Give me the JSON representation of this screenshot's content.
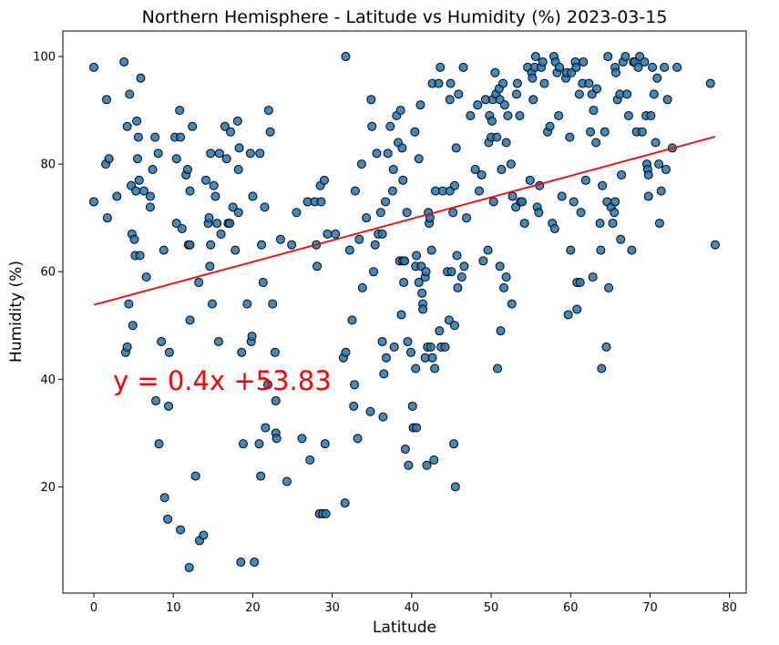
{
  "chart_data": {
    "type": "scatter",
    "title": "Northern Hemisphere - Latitude vs Humidity (%) 2023-03-15",
    "xlabel": "Latitude",
    "ylabel": "Humidity (%)",
    "xlim": [
      -3.9,
      82.1
    ],
    "ylim": [
      0.25,
      104.75
    ],
    "xticks": [
      0,
      10,
      20,
      30,
      40,
      50,
      60,
      70,
      80
    ],
    "yticks": [
      20,
      40,
      60,
      80,
      100
    ],
    "grid": false,
    "point_color": "#1f77b4",
    "point_edge_color": "#000000",
    "regression": {
      "slope": 0.4,
      "intercept": 53.83,
      "x_range": [
        0,
        78.2
      ],
      "color": "#ff0000",
      "equation_text": "y = 0.4x +53.83",
      "equation_anchor": [
        2.4,
        38
      ]
    },
    "points": [
      [
        0,
        98
      ],
      [
        0,
        73
      ],
      [
        1.5,
        80
      ],
      [
        1.6,
        92
      ],
      [
        1.7,
        70
      ],
      [
        1.9,
        81
      ],
      [
        2.9,
        74
      ],
      [
        3.8,
        99
      ],
      [
        4,
        45
      ],
      [
        4.2,
        87
      ],
      [
        4.2,
        46
      ],
      [
        4.4,
        54
      ],
      [
        4.5,
        93
      ],
      [
        4.7,
        76
      ],
      [
        4.8,
        67
      ],
      [
        4.9,
        50
      ],
      [
        5.1,
        66
      ],
      [
        5.2,
        63
      ],
      [
        5.3,
        75
      ],
      [
        5.4,
        88
      ],
      [
        5.5,
        81
      ],
      [
        5.6,
        85
      ],
      [
        5.7,
        77
      ],
      [
        5.8,
        63
      ],
      [
        5.9,
        96
      ],
      [
        6.3,
        75
      ],
      [
        6.6,
        59
      ],
      [
        7.1,
        74
      ],
      [
        7.1,
        72
      ],
      [
        7.4,
        79
      ],
      [
        7.7,
        85
      ],
      [
        7.8,
        36
      ],
      [
        8.1,
        82
      ],
      [
        8.2,
        28
      ],
      [
        8.5,
        47
      ],
      [
        8.8,
        64
      ],
      [
        8.9,
        18
      ],
      [
        9.3,
        14
      ],
      [
        9.4,
        35
      ],
      [
        9.5,
        45
      ],
      [
        10.2,
        85
      ],
      [
        10.4,
        81
      ],
      [
        10.4,
        69
      ],
      [
        10.8,
        90
      ],
      [
        10.9,
        12
      ],
      [
        10.9,
        85
      ],
      [
        11.1,
        68
      ],
      [
        11.6,
        78
      ],
      [
        11.8,
        79
      ],
      [
        11.9,
        65
      ],
      [
        12.0,
        5
      ],
      [
        12.1,
        65
      ],
      [
        12.1,
        75
      ],
      [
        12.1,
        51
      ],
      [
        12.4,
        87
      ],
      [
        12.8,
        22
      ],
      [
        13.2,
        58
      ],
      [
        13.3,
        10
      ],
      [
        13.8,
        11
      ],
      [
        14.1,
        77
      ],
      [
        14.4,
        69
      ],
      [
        14.5,
        70
      ],
      [
        14.6,
        61
      ],
      [
        14.7,
        82
      ],
      [
        14.7,
        65
      ],
      [
        14.9,
        54
      ],
      [
        15.1,
        76
      ],
      [
        15.3,
        74
      ],
      [
        15.5,
        69
      ],
      [
        15.7,
        47
      ],
      [
        15.8,
        82
      ],
      [
        16.0,
        67
      ],
      [
        16.5,
        87
      ],
      [
        16.7,
        81
      ],
      [
        16.9,
        69
      ],
      [
        17.1,
        69
      ],
      [
        17.2,
        86
      ],
      [
        17.5,
        72
      ],
      [
        17.8,
        64
      ],
      [
        18.1,
        88
      ],
      [
        18.2,
        79
      ],
      [
        18.2,
        71
      ],
      [
        18.3,
        83
      ],
      [
        18.5,
        6
      ],
      [
        18.6,
        45
      ],
      [
        18.8,
        28
      ],
      [
        19.3,
        54
      ],
      [
        19.7,
        82
      ],
      [
        19.8,
        47
      ],
      [
        19.9,
        48
      ],
      [
        20.0,
        74
      ],
      [
        20.2,
        6
      ],
      [
        20.8,
        28
      ],
      [
        20.9,
        82
      ],
      [
        21.0,
        22
      ],
      [
        21.1,
        65
      ],
      [
        21.3,
        58
      ],
      [
        21.5,
        72
      ],
      [
        21.6,
        31
      ],
      [
        21.9,
        39
      ],
      [
        22.0,
        90
      ],
      [
        22.2,
        86
      ],
      [
        22.5,
        54
      ],
      [
        22.8,
        45
      ],
      [
        22.9,
        30
      ],
      [
        22.9,
        36
      ],
      [
        23.0,
        29
      ],
      [
        23.5,
        66
      ],
      [
        24.3,
        21
      ],
      [
        24.9,
        65
      ],
      [
        25.5,
        71
      ],
      [
        26.2,
        29
      ],
      [
        26.9,
        73
      ],
      [
        27.2,
        25
      ],
      [
        27.8,
        73
      ],
      [
        28.0,
        65
      ],
      [
        28.1,
        61
      ],
      [
        28.4,
        15
      ],
      [
        28.5,
        76
      ],
      [
        28.6,
        73
      ],
      [
        28.8,
        15
      ],
      [
        29.0,
        77
      ],
      [
        29.1,
        28
      ],
      [
        29.2,
        15
      ],
      [
        29.4,
        67
      ],
      [
        30.4,
        67
      ],
      [
        31.4,
        44
      ],
      [
        31.6,
        17
      ],
      [
        31.7,
        100
      ],
      [
        31.7,
        45
      ],
      [
        32.2,
        64
      ],
      [
        32.5,
        51
      ],
      [
        32.7,
        35
      ],
      [
        32.8,
        39
      ],
      [
        32.9,
        75
      ],
      [
        33.2,
        29
      ],
      [
        33.4,
        66
      ],
      [
        33.7,
        80
      ],
      [
        33.8,
        57
      ],
      [
        34.3,
        70
      ],
      [
        34.8,
        34
      ],
      [
        34.9,
        92
      ],
      [
        35.0,
        87
      ],
      [
        35.2,
        60
      ],
      [
        35.4,
        65
      ],
      [
        35.6,
        82
      ],
      [
        35.8,
        67
      ],
      [
        36.1,
        71
      ],
      [
        36.3,
        47
      ],
      [
        36.3,
        67
      ],
      [
        36.4,
        33
      ],
      [
        36.5,
        41
      ],
      [
        36.7,
        73
      ],
      [
        36.8,
        44
      ],
      [
        37.0,
        82
      ],
      [
        37.3,
        87
      ],
      [
        37.6,
        75
      ],
      [
        37.7,
        79
      ],
      [
        37.8,
        46
      ],
      [
        38.1,
        89
      ],
      [
        38.3,
        84
      ],
      [
        38.5,
        62
      ],
      [
        38.6,
        90
      ],
      [
        38.7,
        52
      ],
      [
        38.8,
        83
      ],
      [
        38.9,
        77
      ],
      [
        38.9,
        62
      ],
      [
        39.0,
        58
      ],
      [
        39.1,
        62
      ],
      [
        39.2,
        27
      ],
      [
        39.4,
        71
      ],
      [
        39.5,
        47
      ],
      [
        39.6,
        24
      ],
      [
        39.9,
        45
      ],
      [
        40.1,
        35
      ],
      [
        40.2,
        31
      ],
      [
        40.4,
        86
      ],
      [
        40.5,
        61
      ],
      [
        40.5,
        42
      ],
      [
        40.6,
        63
      ],
      [
        40.6,
        31
      ],
      [
        40.9,
        58
      ],
      [
        40.9,
        81
      ],
      [
        41.1,
        91
      ],
      [
        41.2,
        61
      ],
      [
        41.3,
        56
      ],
      [
        41.4,
        54
      ],
      [
        41.4,
        53
      ],
      [
        41.7,
        59
      ],
      [
        41.7,
        44
      ],
      [
        41.8,
        60
      ],
      [
        41.9,
        24
      ],
      [
        42.0,
        46
      ],
      [
        42.1,
        71
      ],
      [
        42.2,
        69
      ],
      [
        42.3,
        70
      ],
      [
        42.4,
        46
      ],
      [
        42.5,
        64
      ],
      [
        42.6,
        44
      ],
      [
        42.6,
        95
      ],
      [
        42.8,
        25
      ],
      [
        42.9,
        42
      ],
      [
        43.0,
        75
      ],
      [
        43.4,
        95
      ],
      [
        43.5,
        49
      ],
      [
        43.6,
        98
      ],
      [
        43.7,
        46
      ],
      [
        43.9,
        75
      ],
      [
        44.2,
        46
      ],
      [
        44.5,
        60
      ],
      [
        44.7,
        51
      ],
      [
        44.8,
        75
      ],
      [
        44.8,
        92
      ],
      [
        44.9,
        95
      ],
      [
        45.0,
        60
      ],
      [
        45.2,
        71
      ],
      [
        45.3,
        28
      ],
      [
        45.4,
        50
      ],
      [
        45.4,
        76
      ],
      [
        45.5,
        20
      ],
      [
        45.6,
        83
      ],
      [
        45.7,
        63
      ],
      [
        45.8,
        57
      ],
      [
        45.9,
        93
      ],
      [
        46.3,
        59
      ],
      [
        46.5,
        98
      ],
      [
        46.6,
        61
      ],
      [
        46.9,
        70
      ],
      [
        47.4,
        89
      ],
      [
        48.0,
        79
      ],
      [
        48.3,
        91
      ],
      [
        48.5,
        75
      ],
      [
        48.8,
        78
      ],
      [
        49.0,
        62
      ],
      [
        49.3,
        92
      ],
      [
        49.6,
        64
      ],
      [
        49.7,
        84
      ],
      [
        49.8,
        89
      ],
      [
        50.0,
        85
      ],
      [
        50.1,
        88
      ],
      [
        50.2,
        92
      ],
      [
        50.3,
        73
      ],
      [
        50.5,
        97
      ],
      [
        50.6,
        93
      ],
      [
        50.7,
        85
      ],
      [
        50.8,
        42
      ],
      [
        51.0,
        94
      ],
      [
        51.1,
        92
      ],
      [
        51.1,
        61
      ],
      [
        51.2,
        49
      ],
      [
        51.3,
        79
      ],
      [
        51.5,
        95
      ],
      [
        51.6,
        57
      ],
      [
        51.7,
        91
      ],
      [
        51.9,
        84
      ],
      [
        51.9,
        59
      ],
      [
        52.1,
        89
      ],
      [
        52.5,
        80
      ],
      [
        52.6,
        54
      ],
      [
        52.7,
        74
      ],
      [
        53.1,
        72
      ],
      [
        53.2,
        93
      ],
      [
        53.3,
        95
      ],
      [
        53.6,
        89
      ],
      [
        53.7,
        73
      ],
      [
        53.9,
        73
      ],
      [
        54.2,
        69
      ],
      [
        54.6,
        98
      ],
      [
        54.9,
        77
      ],
      [
        55.1,
        97
      ],
      [
        55.2,
        96
      ],
      [
        55.3,
        92
      ],
      [
        55.5,
        98
      ],
      [
        55.6,
        100
      ],
      [
        55.8,
        72
      ],
      [
        56.0,
        71
      ],
      [
        56.1,
        76
      ],
      [
        56.3,
        98
      ],
      [
        56.5,
        99
      ],
      [
        56.7,
        95
      ],
      [
        57.1,
        86
      ],
      [
        57.4,
        87
      ],
      [
        57.7,
        69
      ],
      [
        57.9,
        100
      ],
      [
        58.0,
        68
      ],
      [
        58.1,
        99
      ],
      [
        58.3,
        97
      ],
      [
        58.5,
        89
      ],
      [
        58.6,
        98
      ],
      [
        58.9,
        74
      ],
      [
        59.4,
        96
      ],
      [
        59.5,
        97
      ],
      [
        59.7,
        52
      ],
      [
        59.9,
        85
      ],
      [
        60.0,
        64
      ],
      [
        60.1,
        97
      ],
      [
        60.4,
        73
      ],
      [
        60.6,
        99
      ],
      [
        60.7,
        98
      ],
      [
        60.8,
        58
      ],
      [
        60.8,
        53
      ],
      [
        61.1,
        93
      ],
      [
        61.2,
        58
      ],
      [
        61.3,
        71
      ],
      [
        61.5,
        95
      ],
      [
        61.6,
        99
      ],
      [
        61.9,
        77
      ],
      [
        62.3,
        95
      ],
      [
        62.5,
        86
      ],
      [
        62.7,
        93
      ],
      [
        62.8,
        59
      ],
      [
        62.9,
        90
      ],
      [
        63.2,
        84
      ],
      [
        63.3,
        94
      ],
      [
        63.7,
        69
      ],
      [
        63.8,
        64
      ],
      [
        63.9,
        42
      ],
      [
        64.0,
        76
      ],
      [
        64.3,
        86
      ],
      [
        64.5,
        46
      ],
      [
        64.6,
        73
      ],
      [
        64.7,
        100
      ],
      [
        64.8,
        57
      ],
      [
        65.1,
        72
      ],
      [
        65.3,
        69
      ],
      [
        65.5,
        71
      ],
      [
        65.6,
        73
      ],
      [
        65.6,
        98
      ],
      [
        65.7,
        97
      ],
      [
        65.9,
        92
      ],
      [
        66.2,
        93
      ],
      [
        66.3,
        66
      ],
      [
        66.4,
        78
      ],
      [
        66.6,
        99
      ],
      [
        66.9,
        100
      ],
      [
        67.1,
        93
      ],
      [
        67.3,
        89
      ],
      [
        67.7,
        64
      ],
      [
        67.9,
        99
      ],
      [
        68.1,
        99
      ],
      [
        68.3,
        86
      ],
      [
        68.5,
        98
      ],
      [
        68.7,
        100
      ],
      [
        69.0,
        86
      ],
      [
        69.3,
        99
      ],
      [
        69.5,
        89
      ],
      [
        69.6,
        80
      ],
      [
        69.7,
        79
      ],
      [
        69.8,
        78
      ],
      [
        69.8,
        74
      ],
      [
        70.1,
        89
      ],
      [
        70.3,
        98
      ],
      [
        70.5,
        93
      ],
      [
        70.7,
        84
      ],
      [
        70.9,
        96
      ],
      [
        71.1,
        80
      ],
      [
        71.2,
        69
      ],
      [
        71.4,
        75
      ],
      [
        71.8,
        98
      ],
      [
        72.0,
        79
      ],
      [
        72.2,
        92
      ],
      [
        72.8,
        83
      ],
      [
        73.4,
        98
      ],
      [
        77.6,
        95
      ],
      [
        78.2,
        65
      ]
    ]
  }
}
